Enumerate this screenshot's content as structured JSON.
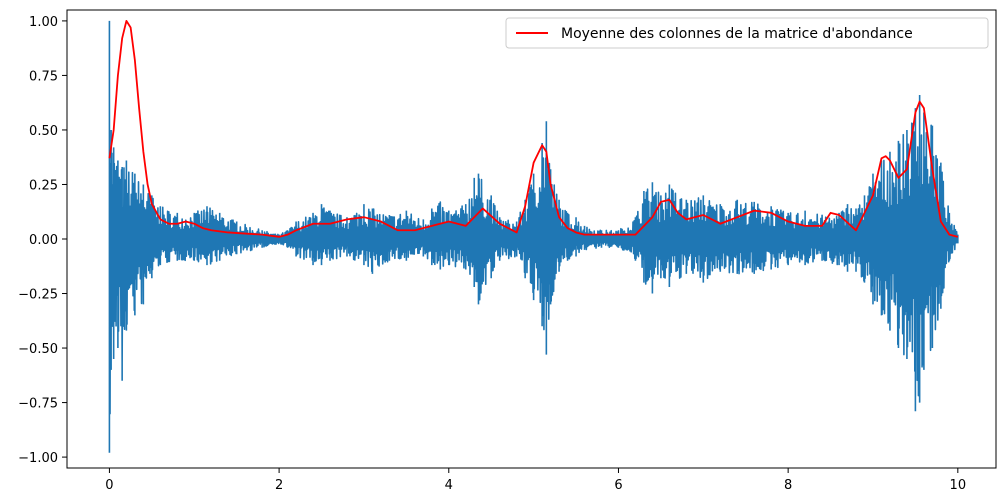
{
  "chart_data": {
    "type": "line",
    "title": "",
    "xlabel": "",
    "ylabel": "",
    "xlim": [
      -0.5,
      10.45
    ],
    "ylim": [
      -1.05,
      1.05
    ],
    "x_ticks": [
      0,
      2,
      4,
      6,
      8,
      10
    ],
    "x_tick_labels": [
      "0",
      "2",
      "4",
      "6",
      "8",
      "10"
    ],
    "y_ticks": [
      1.0,
      0.75,
      0.5,
      0.25,
      0.0,
      -0.25,
      -0.5,
      -0.75,
      -1.0
    ],
    "y_tick_labels": [
      "1.00",
      "0.75",
      "0.50",
      "0.25",
      "0.00",
      "−0.25",
      "−0.50",
      "−0.75",
      "−1.00"
    ],
    "grid": false,
    "legend": {
      "placement": "top-right",
      "entries": [
        "Moyenne des colonnes de la matrice d'abondance"
      ]
    },
    "series": [
      {
        "color": "#1f77b4",
        "kind": "waveform",
        "envelope": {
          "x": [
            0,
            0.02,
            0.05,
            0.1,
            0.15,
            0.2,
            0.3,
            0.4,
            0.5,
            0.6,
            0.8,
            1.0,
            1.15,
            1.3,
            1.5,
            1.8,
            2.0,
            2.1,
            2.2,
            2.4,
            2.5,
            2.6,
            2.8,
            3.0,
            3.1,
            3.3,
            3.5,
            3.7,
            3.8,
            3.9,
            4.0,
            4.2,
            4.3,
            4.35,
            4.5,
            4.6,
            4.8,
            4.9,
            5.0,
            5.1,
            5.15,
            5.2,
            5.3,
            5.4,
            5.5,
            5.6,
            5.8,
            6.0,
            6.2,
            6.3,
            6.4,
            6.5,
            6.6,
            6.8,
            7.0,
            7.2,
            7.4,
            7.6,
            7.8,
            8.0,
            8.2,
            8.4,
            8.6,
            8.7,
            8.8,
            8.9,
            9.0,
            9.1,
            9.2,
            9.3,
            9.4,
            9.5,
            9.55,
            9.6,
            9.7,
            9.8,
            9.9,
            10.0
          ],
          "y": [
            1.0,
            0.5,
            0.42,
            0.36,
            0.33,
            0.36,
            0.3,
            0.25,
            0.2,
            0.15,
            0.12,
            0.12,
            0.15,
            0.12,
            0.08,
            0.04,
            0.02,
            0.04,
            0.08,
            0.12,
            0.16,
            0.13,
            0.1,
            0.16,
            0.14,
            0.11,
            0.13,
            0.09,
            0.14,
            0.17,
            0.13,
            0.16,
            0.28,
            0.3,
            0.2,
            0.1,
            0.08,
            0.18,
            0.3,
            0.44,
            0.54,
            0.32,
            0.18,
            0.12,
            0.1,
            0.06,
            0.04,
            0.04,
            0.1,
            0.22,
            0.26,
            0.2,
            0.25,
            0.18,
            0.2,
            0.16,
            0.18,
            0.17,
            0.15,
            0.12,
            0.13,
            0.11,
            0.12,
            0.16,
            0.14,
            0.2,
            0.3,
            0.36,
            0.4,
            0.45,
            0.5,
            0.6,
            0.66,
            0.58,
            0.52,
            0.35,
            0.12,
            0.02
          ],
          "y_min": [
            -0.98,
            -0.6,
            -0.55,
            -0.5,
            -0.65,
            -0.42,
            -0.35,
            -0.3,
            -0.18,
            -0.12,
            -0.1,
            -0.1,
            -0.12,
            -0.1,
            -0.07,
            -0.04,
            -0.02,
            -0.04,
            -0.08,
            -0.12,
            -0.12,
            -0.1,
            -0.08,
            -0.12,
            -0.16,
            -0.1,
            -0.1,
            -0.08,
            -0.12,
            -0.14,
            -0.12,
            -0.14,
            -0.22,
            -0.3,
            -0.18,
            -0.1,
            -0.08,
            -0.18,
            -0.28,
            -0.4,
            -0.53,
            -0.3,
            -0.15,
            -0.1,
            -0.08,
            -0.05,
            -0.04,
            -0.04,
            -0.1,
            -0.2,
            -0.25,
            -0.18,
            -0.22,
            -0.16,
            -0.2,
            -0.15,
            -0.16,
            -0.16,
            -0.14,
            -0.12,
            -0.12,
            -0.1,
            -0.12,
            -0.15,
            -0.15,
            -0.2,
            -0.3,
            -0.35,
            -0.42,
            -0.5,
            -0.55,
            -0.79,
            -0.75,
            -0.6,
            -0.5,
            -0.32,
            -0.1,
            -0.02
          ]
        }
      },
      {
        "name": "Moyenne des colonnes de la matrice d'abondance",
        "color": "#ff0000",
        "kind": "line",
        "x": [
          0,
          0.05,
          0.1,
          0.15,
          0.2,
          0.25,
          0.3,
          0.35,
          0.4,
          0.45,
          0.5,
          0.6,
          0.7,
          0.8,
          0.9,
          1.0,
          1.1,
          1.2,
          1.3,
          1.4,
          1.6,
          1.8,
          2.0,
          2.1,
          2.2,
          2.4,
          2.6,
          2.8,
          3.0,
          3.2,
          3.4,
          3.6,
          3.8,
          4.0,
          4.2,
          4.4,
          4.6,
          4.8,
          4.9,
          5.0,
          5.1,
          5.15,
          5.2,
          5.3,
          5.4,
          5.5,
          5.6,
          5.8,
          6.0,
          6.2,
          6.4,
          6.5,
          6.6,
          6.7,
          6.8,
          7.0,
          7.2,
          7.4,
          7.6,
          7.8,
          8.0,
          8.2,
          8.4,
          8.5,
          8.6,
          8.8,
          9.0,
          9.1,
          9.15,
          9.2,
          9.3,
          9.4,
          9.5,
          9.55,
          9.6,
          9.7,
          9.8,
          9.9,
          10.0
        ],
        "y": [
          0.37,
          0.5,
          0.75,
          0.92,
          1.0,
          0.97,
          0.82,
          0.6,
          0.4,
          0.25,
          0.16,
          0.09,
          0.07,
          0.07,
          0.08,
          0.07,
          0.05,
          0.04,
          0.035,
          0.03,
          0.025,
          0.02,
          0.01,
          0.02,
          0.04,
          0.07,
          0.07,
          0.09,
          0.1,
          0.08,
          0.04,
          0.04,
          0.06,
          0.08,
          0.06,
          0.14,
          0.07,
          0.03,
          0.15,
          0.35,
          0.43,
          0.4,
          0.25,
          0.1,
          0.05,
          0.03,
          0.02,
          0.02,
          0.02,
          0.02,
          0.1,
          0.17,
          0.18,
          0.12,
          0.09,
          0.11,
          0.07,
          0.1,
          0.13,
          0.12,
          0.08,
          0.06,
          0.06,
          0.12,
          0.11,
          0.04,
          0.2,
          0.37,
          0.38,
          0.36,
          0.28,
          0.32,
          0.58,
          0.63,
          0.6,
          0.32,
          0.08,
          0.02,
          0.01
        ]
      }
    ]
  }
}
